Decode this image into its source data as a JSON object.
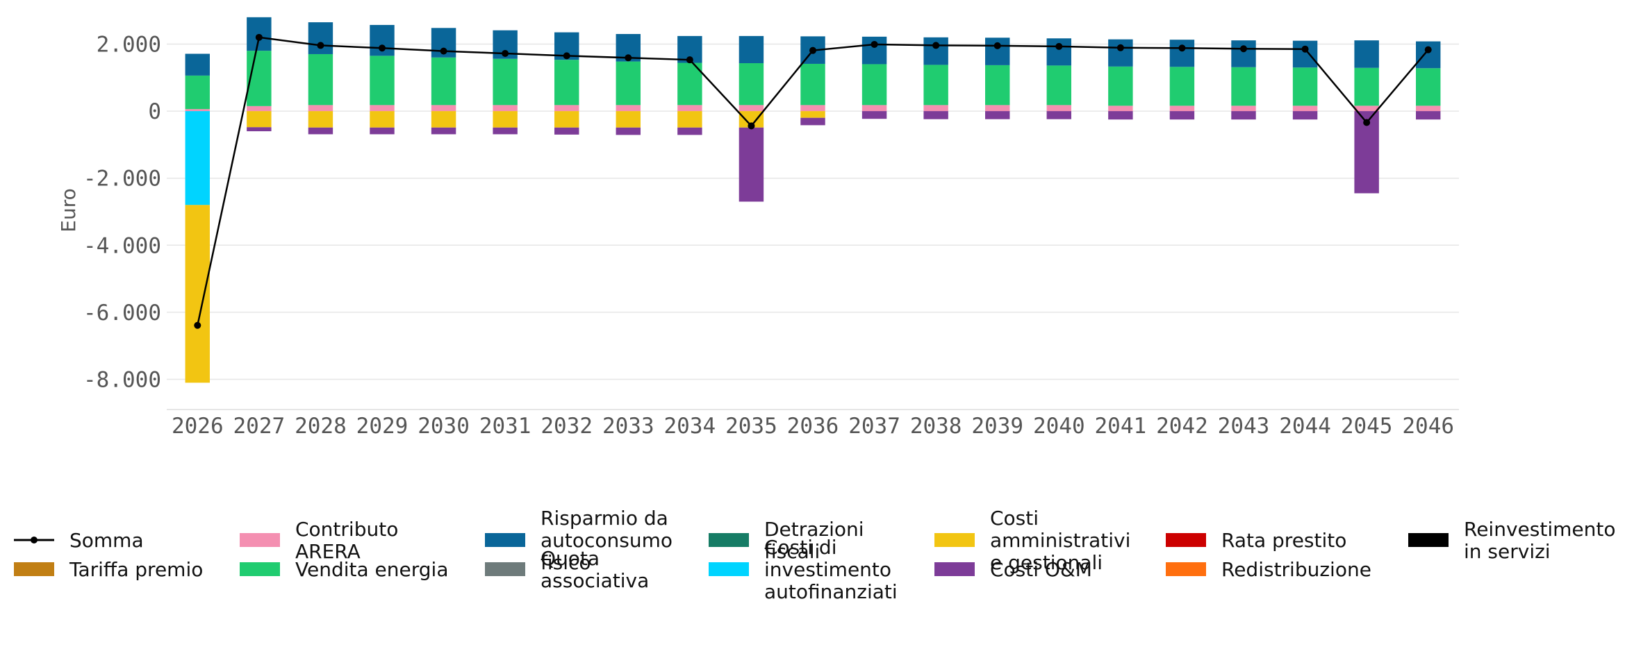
{
  "chart_data": {
    "type": "bar",
    "stacked": true,
    "title": "",
    "xlabel": "",
    "ylabel": "Euro",
    "ylim": [
      -8900,
      2900
    ],
    "yticks": [
      2000,
      0,
      -2000,
      -4000,
      -6000,
      -8000
    ],
    "ytick_labels": [
      "2.000",
      "0",
      "-2.000",
      "-4.000",
      "-6.000",
      "-8.000"
    ],
    "grid": true,
    "legend_position": "bottom",
    "categories": [
      "2026",
      "2027",
      "2028",
      "2029",
      "2030",
      "2031",
      "2032",
      "2033",
      "2034",
      "2035",
      "2036",
      "2037",
      "2038",
      "2039",
      "2040",
      "2041",
      "2042",
      "2043",
      "2044",
      "2045",
      "2046"
    ],
    "series": [
      {
        "name": "Tariffa premio",
        "color": "#C17F14",
        "values": [
          0,
          0,
          0,
          0,
          0,
          0,
          0,
          0,
          0,
          0,
          0,
          0,
          0,
          0,
          0,
          0,
          0,
          0,
          0,
          0,
          0
        ]
      },
      {
        "name": "Contributo ARERA",
        "color": "#F48FB1",
        "values": [
          60,
          150,
          180,
          180,
          180,
          180,
          180,
          180,
          180,
          180,
          180,
          180,
          180,
          180,
          180,
          160,
          160,
          160,
          160,
          160,
          160
        ]
      },
      {
        "name": "Vendita energia",
        "color": "#20CC70",
        "values": [
          1000,
          1650,
          1520,
          1470,
          1420,
          1380,
          1350,
          1300,
          1260,
          1250,
          1230,
          1220,
          1200,
          1190,
          1180,
          1170,
          1160,
          1150,
          1140,
          1130,
          1120
        ]
      },
      {
        "name": "Risparmio da autoconsumo fisico",
        "color": "#0A6699",
        "values": [
          650,
          1000,
          950,
          920,
          880,
          850,
          820,
          820,
          800,
          810,
          820,
          820,
          820,
          820,
          810,
          810,
          810,
          800,
          800,
          820,
          800
        ]
      },
      {
        "name": "Detrazioni fiscali",
        "color": "#167C65",
        "values": [
          0,
          0,
          0,
          0,
          0,
          0,
          0,
          0,
          0,
          0,
          0,
          0,
          0,
          0,
          0,
          0,
          0,
          0,
          0,
          0,
          0
        ]
      },
      {
        "name": "Quota associativa",
        "color": "#6E7B7B",
        "values": [
          0,
          0,
          0,
          0,
          0,
          0,
          0,
          0,
          0,
          0,
          0,
          0,
          0,
          0,
          0,
          0,
          0,
          0,
          0,
          0,
          0
        ]
      },
      {
        "name": "Costi di investimento autofinanziati",
        "color": "#00D4FF",
        "values": [
          -2800,
          0,
          0,
          0,
          0,
          0,
          0,
          0,
          0,
          0,
          0,
          0,
          0,
          0,
          0,
          0,
          0,
          0,
          0,
          0,
          0
        ]
      },
      {
        "name": "Costi amministrativi e gestionali",
        "color": "#F2C512",
        "values": [
          -5300,
          -480,
          -490,
          -490,
          -490,
          -490,
          -490,
          -490,
          -490,
          -490,
          -200,
          0,
          0,
          0,
          0,
          0,
          0,
          0,
          0,
          0,
          0
        ]
      },
      {
        "name": "Costi O&M",
        "color": "#7D3C98",
        "values": [
          0,
          -120,
          -200,
          -200,
          -200,
          -200,
          -210,
          -220,
          -220,
          -2210,
          -220,
          -230,
          -240,
          -240,
          -240,
          -250,
          -250,
          -250,
          -250,
          -2450,
          -250
        ]
      },
      {
        "name": "Rata prestito",
        "color": "#CC0000",
        "values": [
          0,
          0,
          0,
          0,
          0,
          0,
          0,
          0,
          0,
          0,
          0,
          0,
          0,
          0,
          0,
          0,
          0,
          0,
          0,
          0,
          0
        ]
      },
      {
        "name": "Redistribuzione",
        "color": "#FF6F0F",
        "values": [
          0,
          0,
          0,
          0,
          0,
          0,
          0,
          0,
          0,
          0,
          0,
          0,
          0,
          0,
          0,
          0,
          0,
          0,
          0,
          0,
          0
        ]
      },
      {
        "name": "Reinvestimento in servizi",
        "color": "#000000",
        "values": [
          0,
          0,
          0,
          0,
          0,
          0,
          0,
          0,
          0,
          0,
          0,
          0,
          0,
          0,
          0,
          0,
          0,
          0,
          0,
          0,
          0
        ]
      }
    ],
    "line_series": {
      "name": "Somma",
      "color": "#000000",
      "values": [
        -6390,
        2200,
        1960,
        1880,
        1790,
        1720,
        1650,
        1590,
        1530,
        -440,
        1810,
        1990,
        1960,
        1950,
        1930,
        1890,
        1880,
        1860,
        1850,
        -340,
        1830
      ]
    },
    "legend": [
      {
        "label_lines": [
          "Somma"
        ],
        "kind": "line",
        "color": "#000000"
      },
      {
        "label_lines": [
          "Tariffa premio"
        ],
        "kind": "patch",
        "color": "#C17F14"
      },
      {
        "label_lines": [
          "Contributo",
          "ARERA"
        ],
        "kind": "patch",
        "color": "#F48FB1"
      },
      {
        "label_lines": [
          "Vendita energia"
        ],
        "kind": "patch",
        "color": "#20CC70"
      },
      {
        "label_lines": [
          "Risparmio da",
          "autoconsumo",
          "fisico"
        ],
        "kind": "patch",
        "color": "#0A6699"
      },
      {
        "label_lines": [
          "Quota",
          "associativa"
        ],
        "kind": "patch",
        "color": "#6E7B7B"
      },
      {
        "label_lines": [
          "Detrazioni",
          "fiscali"
        ],
        "kind": "patch",
        "color": "#167C65"
      },
      {
        "label_lines": [
          "Costi di",
          "investimento",
          "autofinanziati"
        ],
        "kind": "patch",
        "color": "#00D4FF"
      },
      {
        "label_lines": [
          "Costi",
          "amministrativi",
          "e gestionali"
        ],
        "kind": "patch",
        "color": "#F2C512"
      },
      {
        "label_lines": [
          "Costi O&M"
        ],
        "kind": "patch",
        "color": "#7D3C98"
      },
      {
        "label_lines": [
          "Rata prestito"
        ],
        "kind": "patch",
        "color": "#CC0000"
      },
      {
        "label_lines": [
          "Redistribuzione"
        ],
        "kind": "patch",
        "color": "#FF6F0F"
      },
      {
        "label_lines": [
          "Reinvestimento",
          "in servizi"
        ],
        "kind": "patch",
        "color": "#000000"
      }
    ]
  }
}
